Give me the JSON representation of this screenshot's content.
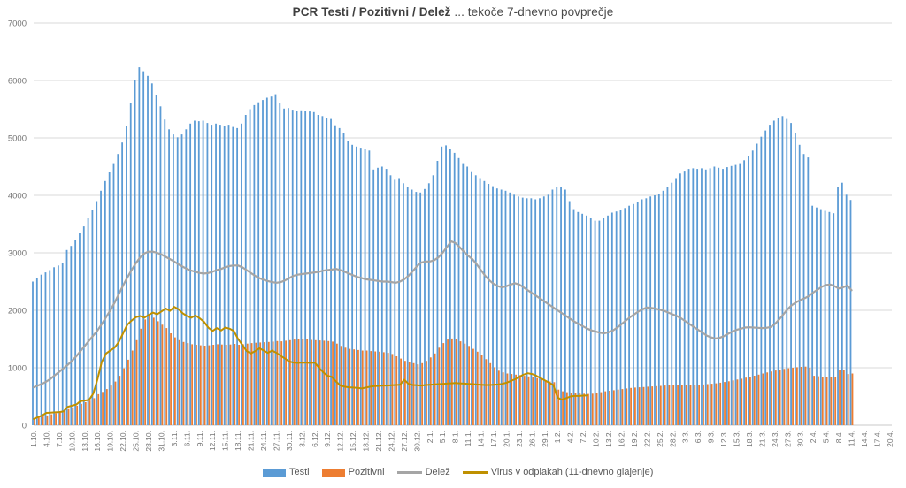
{
  "title": {
    "bold": "PCR Testi / Pozitivni / Delež",
    "rest": " ... tekoče 7-dnevno povprečje"
  },
  "legend": {
    "testi": "Testi",
    "pozitivni": "Pozitivni",
    "delez": "Delež",
    "virus": "Virus v odplakah (11-dnevno glajenje)"
  },
  "colors": {
    "testi": "#5B9BD5",
    "pozitivni": "#ED7D31",
    "delez": "#A5A5A5",
    "virus": "#BF9000",
    "grid": "#D9D9D9",
    "axis_line": "#C8C8C8",
    "axis_text": "#757575",
    "title_text": "#3F3F3F"
  },
  "chart_data": {
    "type": "bar",
    "subtype": "combo-clustered-bars-with-lines",
    "title": "PCR Testi / Pozitivni / Delež ... tekoče 7-dnevno povprečje",
    "xlabel": "",
    "ylabel": "",
    "ylim": [
      0,
      7000
    ],
    "y_ticks": [
      0,
      1000,
      2000,
      3000,
      4000,
      5000,
      6000,
      7000
    ],
    "grid": true,
    "legend_position": "bottom",
    "x_days_per_tick": 3,
    "x_tick_labels": [
      "1.10.",
      "4.10.",
      "7.10.",
      "10.10.",
      "13.10.",
      "16.10.",
      "19.10.",
      "22.10.",
      "25.10.",
      "28.10.",
      "31.10.",
      "3.11.",
      "6.11.",
      "9.11.",
      "12.11.",
      "15.11.",
      "18.11.",
      "21.11.",
      "24.11.",
      "27.11.",
      "30.11.",
      "3.12.",
      "6.12.",
      "9.12.",
      "12.12.",
      "15.12.",
      "18.12.",
      "21.12.",
      "24.12.",
      "27.12.",
      "30.12.",
      "2.1.",
      "5.1.",
      "8.1.",
      "11.1.",
      "14.1.",
      "17.1.",
      "20.1.",
      "23.1.",
      "26.1.",
      "29.1.",
      "1.2.",
      "4.2.",
      "7.2.",
      "10.2.",
      "13.2.",
      "16.2.",
      "19.2.",
      "22.2.",
      "25.2.",
      "28.2.",
      "3.3.",
      "6.3.",
      "9.3.",
      "12.3.",
      "15.3.",
      "18.3.",
      "21.3.",
      "24.3.",
      "27.3.",
      "30.3.",
      "2.4.",
      "5.4.",
      "8.4.",
      "11.4.",
      "14.4.",
      "17.4.",
      "20.4."
    ],
    "series": [
      {
        "name": "Testi",
        "type": "bar",
        "color": "#5B9BD5",
        "values": [
          2500,
          2560,
          2620,
          2660,
          2700,
          2750,
          2780,
          2820,
          3050,
          3120,
          3220,
          3340,
          3460,
          3600,
          3750,
          3900,
          4080,
          4250,
          4400,
          4560,
          4720,
          4920,
          5200,
          5600,
          6000,
          6230,
          6160,
          6080,
          5950,
          5750,
          5550,
          5320,
          5150,
          5060,
          5010,
          5060,
          5150,
          5250,
          5300,
          5290,
          5300,
          5260,
          5230,
          5250,
          5230,
          5210,
          5230,
          5190,
          5170,
          5250,
          5400,
          5500,
          5570,
          5620,
          5660,
          5700,
          5720,
          5760,
          5610,
          5510,
          5520,
          5490,
          5470,
          5480,
          5470,
          5460,
          5450,
          5400,
          5380,
          5350,
          5330,
          5220,
          5170,
          5090,
          4950,
          4880,
          4850,
          4830,
          4800,
          4780,
          4450,
          4480,
          4500,
          4460,
          4350,
          4270,
          4300,
          4210,
          4150,
          4100,
          4060,
          4050,
          4110,
          4210,
          4350,
          4600,
          4850,
          4870,
          4800,
          4740,
          4650,
          4560,
          4500,
          4420,
          4350,
          4300,
          4250,
          4200,
          4160,
          4120,
          4100,
          4080,
          4050,
          4010,
          3980,
          3960,
          3950,
          3950,
          3930,
          3950,
          3980,
          4010,
          4100,
          4150,
          4150,
          4100,
          3900,
          3760,
          3710,
          3680,
          3650,
          3600,
          3560,
          3560,
          3600,
          3650,
          3700,
          3720,
          3750,
          3780,
          3820,
          3850,
          3890,
          3930,
          3950,
          3980,
          4000,
          4030,
          4080,
          4150,
          4220,
          4300,
          4380,
          4430,
          4460,
          4470,
          4460,
          4470,
          4450,
          4470,
          4500,
          4480,
          4460,
          4490,
          4510,
          4530,
          4560,
          4610,
          4680,
          4780,
          4900,
          5020,
          5130,
          5230,
          5300,
          5340,
          5380,
          5330,
          5260,
          5090,
          4880,
          4720,
          4660,
          3820,
          3790,
          3760,
          3730,
          3710,
          3690,
          4150,
          4220,
          4010,
          3920
        ]
      },
      {
        "name": "Pozitivni",
        "type": "bar",
        "color": "#ED7D31",
        "values": [
          130,
          140,
          155,
          170,
          190,
          210,
          230,
          250,
          280,
          310,
          340,
          370,
          400,
          430,
          470,
          540,
          580,
          630,
          690,
          760,
          860,
          990,
          1140,
          1300,
          1480,
          1680,
          1840,
          1900,
          1870,
          1810,
          1750,
          1690,
          1600,
          1530,
          1480,
          1450,
          1430,
          1410,
          1400,
          1390,
          1385,
          1390,
          1400,
          1410,
          1405,
          1400,
          1405,
          1415,
          1400,
          1410,
          1420,
          1430,
          1435,
          1440,
          1445,
          1450,
          1455,
          1465,
          1460,
          1470,
          1480,
          1490,
          1500,
          1505,
          1495,
          1485,
          1480,
          1475,
          1470,
          1465,
          1455,
          1420,
          1380,
          1350,
          1330,
          1320,
          1310,
          1300,
          1300,
          1290,
          1285,
          1280,
          1270,
          1260,
          1240,
          1200,
          1160,
          1120,
          1100,
          1080,
          1060,
          1080,
          1120,
          1180,
          1250,
          1350,
          1430,
          1490,
          1510,
          1500,
          1460,
          1420,
          1380,
          1330,
          1280,
          1220,
          1150,
          1080,
          1010,
          950,
          920,
          900,
          890,
          880,
          870,
          860,
          850,
          840,
          820,
          800,
          780,
          760,
          750,
          620,
          590,
          575,
          565,
          560,
          555,
          550,
          545,
          550,
          560,
          575,
          590,
          600,
          610,
          620,
          630,
          640,
          650,
          655,
          660,
          665,
          670,
          675,
          680,
          685,
          690,
          695,
          700,
          700,
          700,
          700,
          702,
          705,
          708,
          710,
          715,
          722,
          730,
          740,
          752,
          765,
          780,
          795,
          810,
          828,
          845,
          862,
          880,
          900,
          918,
          935,
          952,
          968,
          980,
          990,
          1000,
          1010,
          1015,
          1020,
          1000,
          860,
          852,
          845,
          842,
          840,
          845,
          960,
          965,
          890,
          900
        ]
      },
      {
        "name": "Delež",
        "type": "line",
        "color": "#A5A5A5",
        "values": [
          660,
          690,
          720,
          760,
          810,
          870,
          930,
          990,
          1050,
          1120,
          1200,
          1290,
          1380,
          1470,
          1560,
          1650,
          1760,
          1880,
          2000,
          2130,
          2280,
          2430,
          2570,
          2700,
          2820,
          2920,
          2990,
          3020,
          3020,
          3000,
          2970,
          2930,
          2890,
          2850,
          2800,
          2760,
          2720,
          2690,
          2670,
          2650,
          2640,
          2650,
          2670,
          2700,
          2720,
          2750,
          2770,
          2780,
          2780,
          2750,
          2700,
          2650,
          2600,
          2560,
          2530,
          2510,
          2490,
          2480,
          2490,
          2520,
          2560,
          2600,
          2620,
          2630,
          2640,
          2650,
          2660,
          2670,
          2690,
          2700,
          2710,
          2720,
          2700,
          2670,
          2640,
          2610,
          2580,
          2560,
          2540,
          2530,
          2520,
          2510,
          2500,
          2500,
          2490,
          2480,
          2500,
          2540,
          2600,
          2680,
          2770,
          2830,
          2850,
          2850,
          2870,
          2920,
          3000,
          3100,
          3200,
          3170,
          3100,
          3020,
          2950,
          2890,
          2800,
          2700,
          2600,
          2520,
          2460,
          2420,
          2400,
          2420,
          2450,
          2470,
          2450,
          2400,
          2350,
          2300,
          2250,
          2200,
          2150,
          2100,
          2050,
          2000,
          1950,
          1900,
          1850,
          1800,
          1760,
          1720,
          1680,
          1650,
          1630,
          1610,
          1600,
          1620,
          1650,
          1700,
          1760,
          1820,
          1880,
          1930,
          1980,
          2020,
          2050,
          2040,
          2030,
          2010,
          1990,
          1960,
          1930,
          1900,
          1860,
          1810,
          1760,
          1710,
          1660,
          1610,
          1560,
          1530,
          1510,
          1520,
          1550,
          1590,
          1630,
          1660,
          1680,
          1700,
          1705,
          1700,
          1695,
          1690,
          1695,
          1710,
          1760,
          1840,
          1930,
          2020,
          2090,
          2140,
          2180,
          2210,
          2250,
          2310,
          2360,
          2410,
          2440,
          2450,
          2420,
          2380,
          2400,
          2430,
          2350
        ]
      },
      {
        "name": "Virus v odplakah (11-dnevno glajenje)",
        "type": "line",
        "color": "#BF9000",
        "values": [
          110,
          140,
          170,
          215,
          220,
          225,
          230,
          240,
          320,
          340,
          360,
          420,
          430,
          440,
          550,
          800,
          1100,
          1250,
          1300,
          1350,
          1450,
          1600,
          1750,
          1820,
          1880,
          1900,
          1870,
          1920,
          1960,
          1930,
          1980,
          2030,
          1990,
          2060,
          2020,
          1950,
          1900,
          1870,
          1910,
          1860,
          1800,
          1700,
          1640,
          1690,
          1650,
          1700,
          1680,
          1640,
          1500,
          1400,
          1290,
          1250,
          1290,
          1340,
          1300,
          1260,
          1300,
          1260,
          1210,
          1160,
          1110,
          1090,
          1085,
          1090,
          1088,
          1085,
          1090,
          1000,
          920,
          860,
          840,
          760,
          690,
          670,
          660,
          655,
          650,
          640,
          655,
          670,
          680,
          685,
          690,
          690,
          695,
          700,
          705,
          790,
          720,
          700,
          695,
          690,
          700,
          705,
          710,
          715,
          720,
          725,
          730,
          735,
          730,
          725,
          720,
          715,
          710,
          705,
          700,
          700,
          705,
          710,
          720,
          740,
          770,
          800,
          840,
          880,
          905,
          890,
          860,
          820,
          780,
          740,
          700,
          480,
          445,
          470,
          500,
          510,
          510,
          515,
          520
        ]
      }
    ]
  }
}
